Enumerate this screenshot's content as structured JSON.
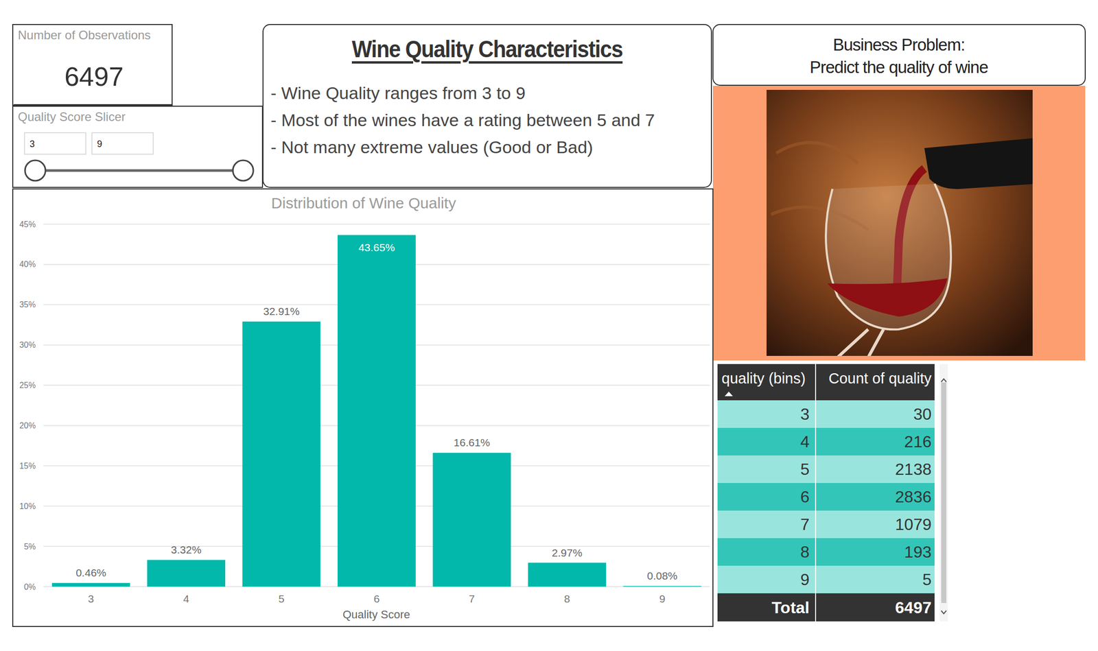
{
  "card": {
    "title": "Number of Observations",
    "value": 6497
  },
  "slicer": {
    "title": "Quality Score Slicer",
    "min": 3,
    "max": 9
  },
  "characteristics": {
    "title": "Wine Quality Characteristics",
    "bullets": [
      "- Wine Quality ranges from 3 to 9",
      "- Most of the wines have a rating between 5 and 7",
      "- Not many extreme values (Good or Bad)"
    ]
  },
  "business_problem": {
    "lines": [
      "Business Problem:",
      "Predict the quality of wine"
    ]
  },
  "chart_data": {
    "type": "bar",
    "title": "Distribution of Wine Quality",
    "x_label": "Quality Score",
    "categories": [
      3,
      4,
      5,
      6,
      7,
      8,
      9
    ],
    "values": [
      0.46,
      3.32,
      32.91,
      43.65,
      16.61,
      2.97,
      0.08
    ],
    "value_labels": [
      "0.46%",
      "3.32%",
      "32.91%",
      "43.65%",
      "16.61%",
      "2.97%",
      "0.08%"
    ],
    "color": "#01b8aa",
    "ylim": [
      0,
      45
    ],
    "yticks": [
      {
        "value": 0,
        "label": "0%"
      },
      {
        "value": 5,
        "label": "5%"
      },
      {
        "value": 10,
        "label": "10%"
      },
      {
        "value": 15,
        "label": "15%"
      },
      {
        "value": 20,
        "label": "20%"
      },
      {
        "value": 25,
        "label": "25%"
      },
      {
        "value": 30,
        "label": "30%"
      },
      {
        "value": 35,
        "label": "35%"
      },
      {
        "value": 40,
        "label": "40%"
      },
      {
        "value": 45,
        "label": "45%"
      }
    ],
    "grid": true,
    "data_labels": true
  },
  "table": {
    "columns": [
      "quality (bins)",
      "Count of quality"
    ],
    "rows": [
      [
        3,
        30
      ],
      [
        4,
        216
      ],
      [
        5,
        2138
      ],
      [
        6,
        2836
      ],
      [
        7,
        1079
      ],
      [
        8,
        193
      ],
      [
        9,
        5
      ]
    ],
    "total": [
      "Total",
      6497
    ]
  }
}
